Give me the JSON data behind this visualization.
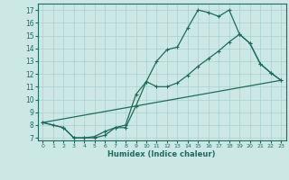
{
  "line1_x": [
    0,
    1,
    2,
    3,
    4,
    5,
    6,
    7,
    8,
    9,
    10,
    11,
    12,
    13,
    14,
    15,
    16,
    17,
    18,
    19,
    20,
    21,
    22,
    23
  ],
  "line1_y": [
    8.2,
    8.0,
    7.8,
    7.0,
    7.0,
    7.0,
    7.2,
    7.8,
    7.8,
    9.5,
    11.4,
    13.0,
    13.9,
    14.1,
    15.6,
    17.0,
    16.8,
    16.5,
    17.0,
    15.1,
    14.4,
    12.8,
    12.1,
    11.5
  ],
  "line2_x": [
    0,
    2,
    3,
    4,
    5,
    6,
    7,
    8,
    9,
    10,
    11,
    12,
    13,
    14,
    15,
    16,
    17,
    18,
    19,
    20,
    21,
    22,
    23
  ],
  "line2_y": [
    8.2,
    7.8,
    7.0,
    7.0,
    7.1,
    7.5,
    7.8,
    8.0,
    10.4,
    11.4,
    11.0,
    11.0,
    11.3,
    11.9,
    12.6,
    13.2,
    13.8,
    14.5,
    15.1,
    14.4,
    12.8,
    12.1,
    11.5
  ],
  "line3_x": [
    0,
    23
  ],
  "line3_y": [
    8.2,
    11.5
  ],
  "color": "#1e6b5e",
  "bg_color": "#cce8e4",
  "grid_color": "#aad0cc",
  "xlabel": "Humidex (Indice chaleur)",
  "ylim": [
    6.8,
    17.5
  ],
  "xlim": [
    -0.5,
    23.5
  ],
  "yticks": [
    7,
    8,
    9,
    10,
    11,
    12,
    13,
    14,
    15,
    16,
    17
  ],
  "xticks": [
    0,
    1,
    2,
    3,
    4,
    5,
    6,
    7,
    8,
    9,
    10,
    11,
    12,
    13,
    14,
    15,
    16,
    17,
    18,
    19,
    20,
    21,
    22,
    23
  ]
}
